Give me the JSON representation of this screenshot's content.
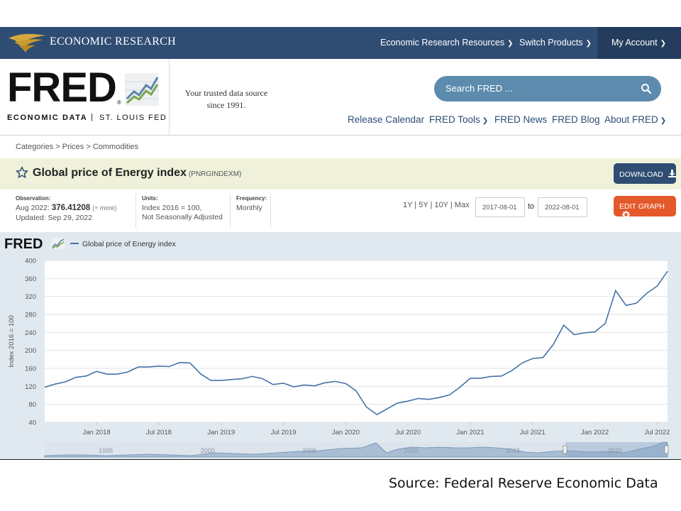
{
  "topbar": {
    "brand": "ECONOMIC RESEARCH",
    "nav": [
      {
        "label": "Economic Research Resources"
      },
      {
        "label": "Switch Products"
      },
      {
        "label": "My Account"
      }
    ]
  },
  "header": {
    "logo_word": "FRED",
    "logo_reg": "®",
    "logo_sub_left": "ECONOMIC DATA",
    "logo_sub_sep": "|",
    "logo_sub_right": "ST. LOUIS FED",
    "tagline_1": "Your trusted data source",
    "tagline_2": "since 1991.",
    "search_placeholder": "Search FRED ...",
    "nav": [
      {
        "label": "Release Calendar"
      },
      {
        "label": "FRED Tools"
      },
      {
        "label": "FRED News"
      },
      {
        "label": "FRED Blog"
      },
      {
        "label": "About FRED"
      }
    ]
  },
  "breadcrumb": "Categories > Prices > Commodities",
  "series": {
    "title": "Global price of Energy index",
    "id": "(PNRGINDEXM)",
    "download_label": "DOWNLOAD",
    "edit_label": "EDIT GRAPH"
  },
  "info": {
    "observation_label": "Observation:",
    "observation_date": "Aug 2022:",
    "observation_value": "376.41208",
    "observation_more": "(+ more)",
    "updated": "Updated: Sep 29, 2022",
    "units_label": "Units:",
    "units_1": "Index 2016 = 100,",
    "units_2": "Not Seasonally Adjusted",
    "frequency_label": "Frequency:",
    "frequency": "Monthly",
    "range_options": "1Y | 5Y | 10Y | Max",
    "date_from": "2017-08-01",
    "date_to_label": "to",
    "date_to": "2022-08-01"
  },
  "footer_source": "Source: Federal Reserve Economic Data",
  "colors": {
    "topbar": "#2f4d73",
    "line": "#4572a7",
    "download": "#2f4d73",
    "edit": "#e4592b",
    "titlebar": "#f0f1da",
    "chart_bg": "#e1e9f0"
  },
  "chart_data": {
    "type": "line",
    "title": "",
    "legend": "Global price of Energy index",
    "logo": "FRED",
    "ylabel": "Index 2016 = 100",
    "xlabel": "",
    "ylim": [
      40,
      400
    ],
    "yticks": [
      40,
      80,
      120,
      160,
      200,
      240,
      280,
      320,
      360,
      400
    ],
    "xlim": [
      "2017-08",
      "2022-08"
    ],
    "xticks": [
      "Jan 2018",
      "Jul 2018",
      "Jan 2019",
      "Jul 2019",
      "Jan 2020",
      "Jul 2020",
      "Jan 2021",
      "Jul 2021",
      "Jan 2022",
      "Jul 2022"
    ],
    "navigator_labels": [
      "1995",
      "2000",
      "2005",
      "2010",
      "2015",
      "2020"
    ],
    "grid": true,
    "series": [
      {
        "name": "Global price of Energy index",
        "x": [
          "2017-08",
          "2017-09",
          "2017-10",
          "2017-11",
          "2017-12",
          "2018-01",
          "2018-02",
          "2018-03",
          "2018-04",
          "2018-05",
          "2018-06",
          "2018-07",
          "2018-08",
          "2018-09",
          "2018-10",
          "2018-11",
          "2018-12",
          "2019-01",
          "2019-02",
          "2019-03",
          "2019-04",
          "2019-05",
          "2019-06",
          "2019-07",
          "2019-08",
          "2019-09",
          "2019-10",
          "2019-11",
          "2019-12",
          "2020-01",
          "2020-02",
          "2020-03",
          "2020-04",
          "2020-05",
          "2020-06",
          "2020-07",
          "2020-08",
          "2020-09",
          "2020-10",
          "2020-11",
          "2020-12",
          "2021-01",
          "2021-02",
          "2021-03",
          "2021-04",
          "2021-05",
          "2021-06",
          "2021-07",
          "2021-08",
          "2021-09",
          "2021-10",
          "2021-11",
          "2021-12",
          "2022-01",
          "2022-02",
          "2022-03",
          "2022-04",
          "2022-05",
          "2022-06",
          "2022-07",
          "2022-08"
        ],
        "values": [
          118,
          125,
          130,
          140,
          143,
          153,
          147,
          147,
          152,
          163,
          163,
          165,
          164,
          173,
          172,
          148,
          133,
          133,
          135,
          137,
          142,
          137,
          124,
          127,
          119,
          123,
          121,
          128,
          131,
          126,
          110,
          74,
          57,
          70,
          83,
          87,
          93,
          91,
          95,
          101,
          118,
          138,
          138,
          142,
          143,
          155,
          172,
          182,
          184,
          213,
          256,
          235,
          239,
          241,
          260,
          333,
          300,
          305,
          327,
          343,
          376
        ]
      }
    ]
  }
}
